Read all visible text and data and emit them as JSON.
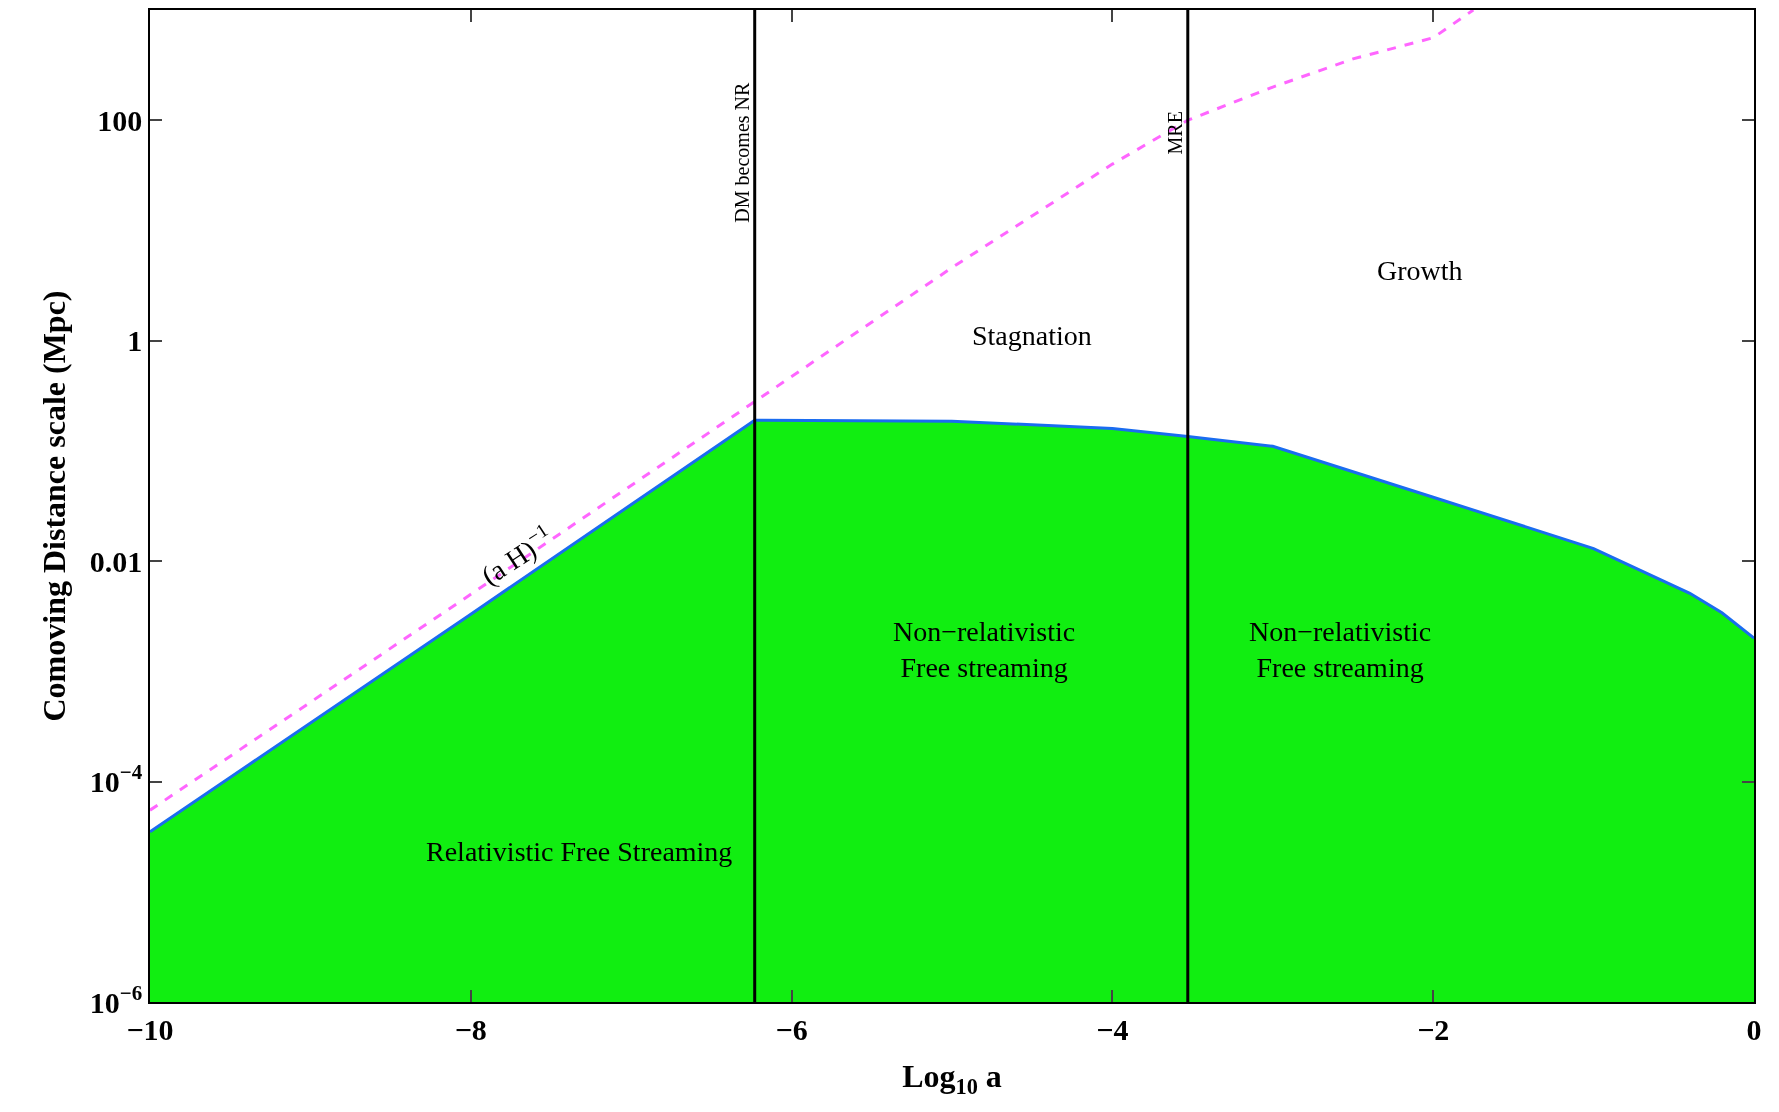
{
  "chart_data": {
    "type": "area",
    "xlabel": "Log$_{10}$ a",
    "ylabel": "Comoving Distance scale (Mpc)",
    "x": [
      -10,
      -8,
      -6.23,
      -5,
      -4,
      -3.53,
      -3,
      -2,
      -1,
      -0.4,
      -0.2,
      0
    ],
    "series": [
      {
        "color": "#11ee11",
        "values": [
          3.5e-05,
          0.0033,
          0.19,
          0.186,
          0.16,
          0.135,
          0.11,
          0.038,
          0.013,
          0.0051,
          0.0034,
          0.002
        ]
      },
      {
        "type": "line",
        "color": "#1a6cf0",
        "values": [
          3.5e-05,
          0.0033,
          0.19,
          0.186,
          0.16,
          0.135,
          0.11,
          0.038,
          0.013,
          0.0051,
          0.0034,
          0.002
        ]
      },
      {
        "type": "line",
        "color": "#ff66ff",
        "line_style": "dashed",
        "x": [
          -10,
          -8,
          -6.23,
          -5,
          -4,
          -3.53,
          -3,
          -2.5,
          -2,
          -1.75
        ],
        "values": [
          5.5e-05,
          0.005,
          0.28,
          4.6,
          40,
          100,
          200,
          360,
          560,
          1000
        ]
      }
    ],
    "log": "y",
    "xlim": [
      -10,
      0
    ],
    "ylim": [
      1e-06,
      1000
    ],
    "xticks": [
      {
        "value": -10,
        "label": "−10"
      },
      {
        "value": -8,
        "label": "−8"
      },
      {
        "value": -6,
        "label": "−6"
      },
      {
        "value": -4,
        "label": "−4"
      },
      {
        "value": -2,
        "label": "−2"
      },
      0
    ],
    "yticks": [
      {
        "value": 1e-06,
        "label": "10$^{−6}$"
      },
      {
        "value": 0.0001,
        "label": "10$^{−4}$"
      },
      0.01,
      1,
      100
    ],
    "grid": false,
    "ref_lines": [
      {
        "axis": "x",
        "value": -6.23,
        "label": "DM becomes NR",
        "color": "#000000"
      },
      {
        "axis": "x",
        "value": -3.53,
        "label": "MRE",
        "color": "#000000"
      }
    ],
    "annotations": [
      "(a H)$^{−1}$",
      "Stagnation",
      "Growth",
      "Non−relativistic\nFree streaming",
      "Non−relativistic\nFree streaming",
      "Relativistic Free Streaming"
    ]
  }
}
